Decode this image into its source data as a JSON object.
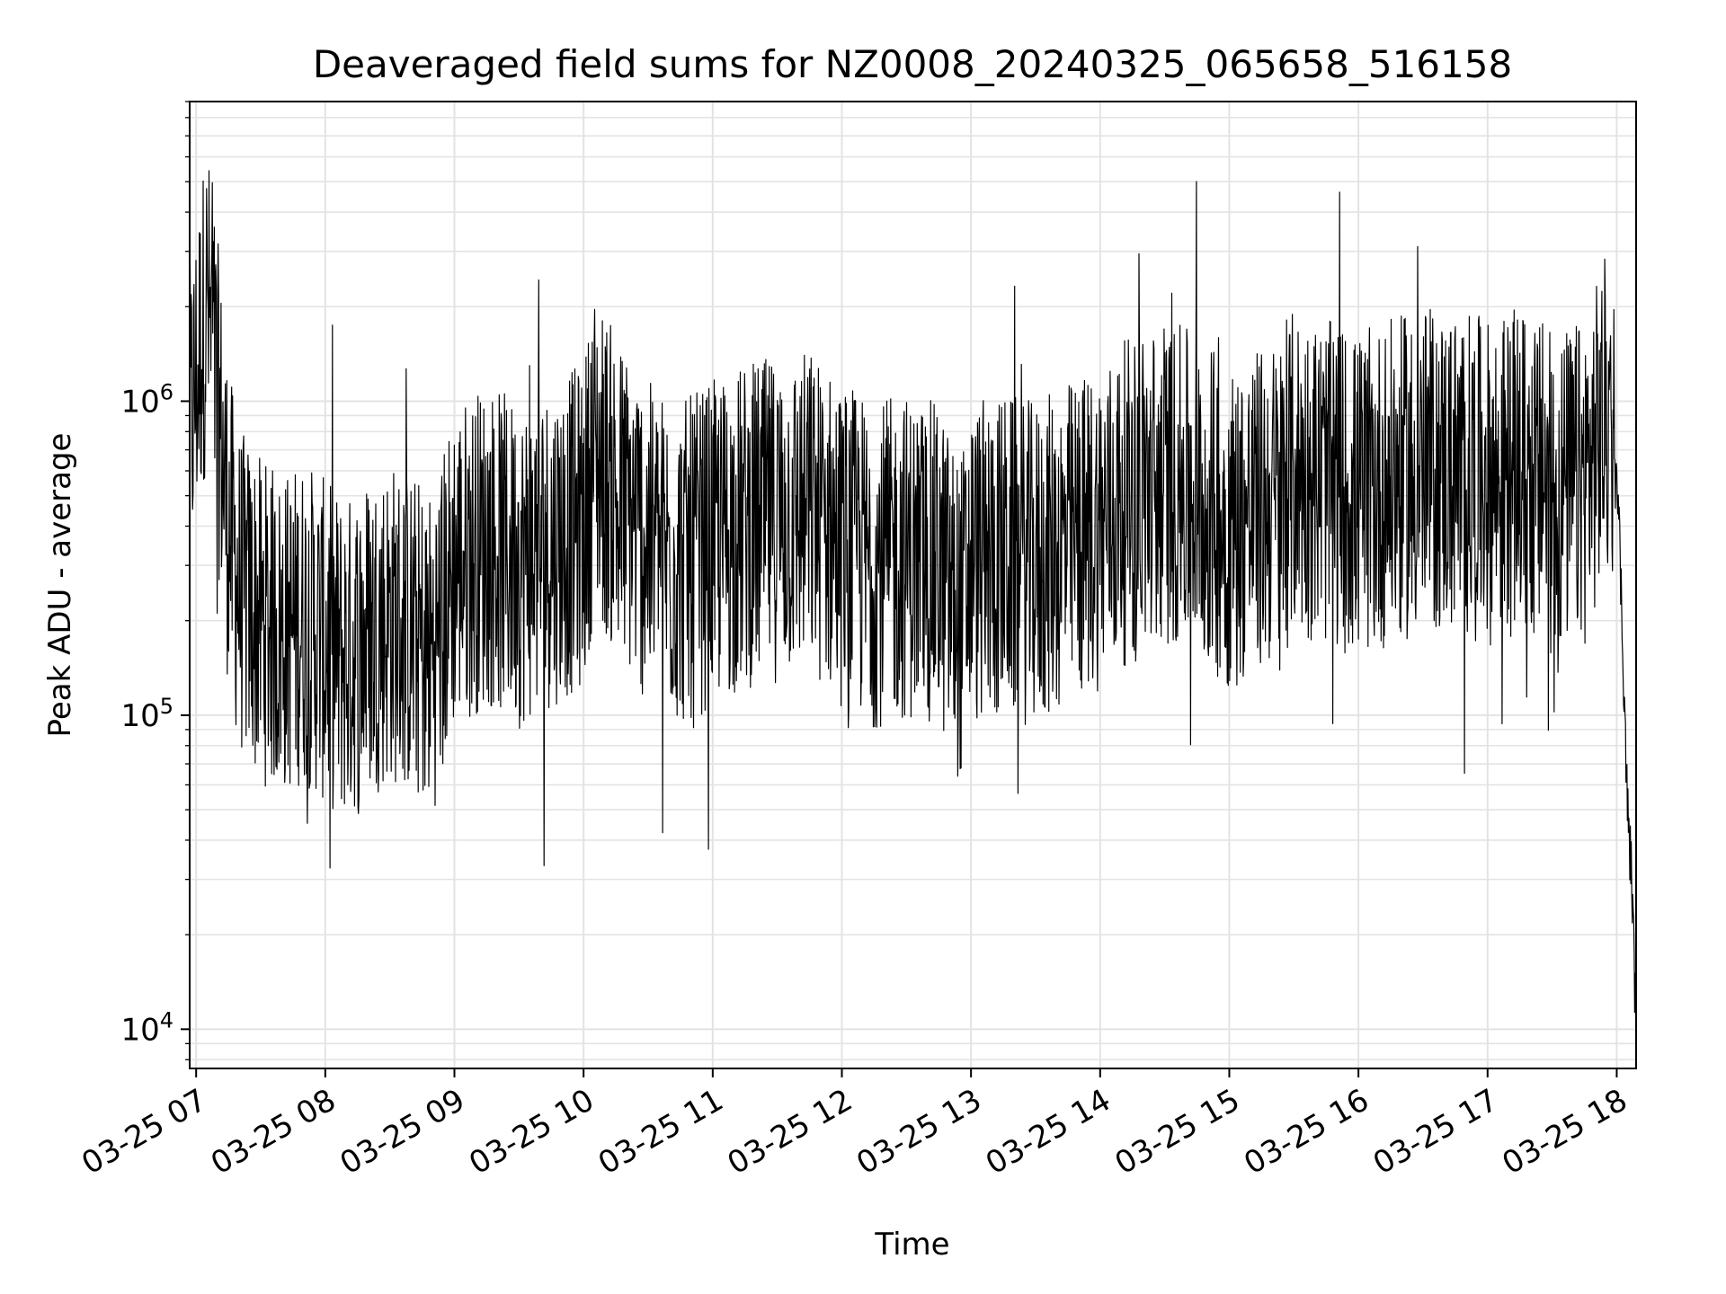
{
  "chart_data": {
    "type": "line",
    "title": "Deaveraged field sums for NZ0008_20240325_065658_516158",
    "xlabel": "Time",
    "ylabel": "Peak ADU - average",
    "y_scale": "log",
    "ylim": [
      7500,
      9000000
    ],
    "xlim": [
      "2024-03-25 06:57",
      "2024-03-25 18:09"
    ],
    "x_ticks": [
      {
        "time": "2024-03-25 07:00",
        "label": "03-25 07"
      },
      {
        "time": "2024-03-25 08:00",
        "label": "03-25 08"
      },
      {
        "time": "2024-03-25 09:00",
        "label": "03-25 09"
      },
      {
        "time": "2024-03-25 10:00",
        "label": "03-25 10"
      },
      {
        "time": "2024-03-25 11:00",
        "label": "03-25 11"
      },
      {
        "time": "2024-03-25 12:00",
        "label": "03-25 12"
      },
      {
        "time": "2024-03-25 13:00",
        "label": "03-25 13"
      },
      {
        "time": "2024-03-25 14:00",
        "label": "03-25 14"
      },
      {
        "time": "2024-03-25 15:00",
        "label": "03-25 15"
      },
      {
        "time": "2024-03-25 16:00",
        "label": "03-25 16"
      },
      {
        "time": "2024-03-25 17:00",
        "label": "03-25 17"
      },
      {
        "time": "2024-03-25 18:00",
        "label": "03-25 18"
      }
    ],
    "y_ticks": [
      {
        "value": 10000,
        "label_base": "10",
        "label_exp": "4"
      },
      {
        "value": 100000,
        "label_base": "10",
        "label_exp": "5"
      },
      {
        "value": 1000000,
        "label_base": "10",
        "label_exp": "6"
      }
    ],
    "grid": true,
    "line_color": "#000000",
    "grid_color": "#e3e3e3",
    "series": [
      {
        "x": [
          "2024-03-25 06:57",
          "2024-03-25 07:02",
          "2024-03-25 07:05",
          "2024-03-25 07:10",
          "2024-03-25 07:15",
          "2024-03-25 07:20",
          "2024-03-25 07:30",
          "2024-03-25 07:40",
          "2024-03-25 07:50",
          "2024-03-25 08:00",
          "2024-03-25 08:10",
          "2024-03-25 08:20",
          "2024-03-25 08:30",
          "2024-03-25 08:40",
          "2024-03-25 08:50",
          "2024-03-25 09:00",
          "2024-03-25 09:15",
          "2024-03-25 09:30",
          "2024-03-25 09:45",
          "2024-03-25 10:00",
          "2024-03-25 10:05",
          "2024-03-25 10:15",
          "2024-03-25 10:30",
          "2024-03-25 10:45",
          "2024-03-25 11:00",
          "2024-03-25 11:15",
          "2024-03-25 11:30",
          "2024-03-25 11:45",
          "2024-03-25 12:00",
          "2024-03-25 12:15",
          "2024-03-25 12:30",
          "2024-03-25 12:45",
          "2024-03-25 12:55",
          "2024-03-25 13:00",
          "2024-03-25 13:15",
          "2024-03-25 13:30",
          "2024-03-25 13:45",
          "2024-03-25 14:00",
          "2024-03-25 14:15",
          "2024-03-25 14:30",
          "2024-03-25 14:45",
          "2024-03-25 15:00",
          "2024-03-25 15:15",
          "2024-03-25 15:25",
          "2024-03-25 15:30",
          "2024-03-25 15:45",
          "2024-03-25 16:00",
          "2024-03-25 16:15",
          "2024-03-25 16:30",
          "2024-03-25 16:45",
          "2024-03-25 17:00",
          "2024-03-25 17:15",
          "2024-03-25 17:30",
          "2024-03-25 17:45",
          "2024-03-25 17:55",
          "2024-03-25 18:00",
          "2024-03-25 18:03",
          "2024-03-25 18:05",
          "2024-03-25 18:07",
          "2024-03-25 18:09"
        ],
        "y": [
          800000,
          1500000,
          2100000,
          1000000,
          400000,
          250000,
          200000,
          180000,
          200000,
          170000,
          150000,
          180000,
          200000,
          180000,
          160000,
          300000,
          350000,
          300000,
          350000,
          400000,
          700000,
          500000,
          350000,
          300000,
          350000,
          400000,
          420000,
          450000,
          350000,
          300000,
          320000,
          300000,
          200000,
          300000,
          320000,
          300000,
          350000,
          400000,
          500000,
          550000,
          500000,
          400000,
          450000,
          500000,
          600000,
          550000,
          500000,
          550000,
          600000,
          600000,
          550000,
          600000,
          500000,
          550000,
          900000,
          700000,
          150000,
          50000,
          30000,
          10000
        ]
      }
    ]
  }
}
